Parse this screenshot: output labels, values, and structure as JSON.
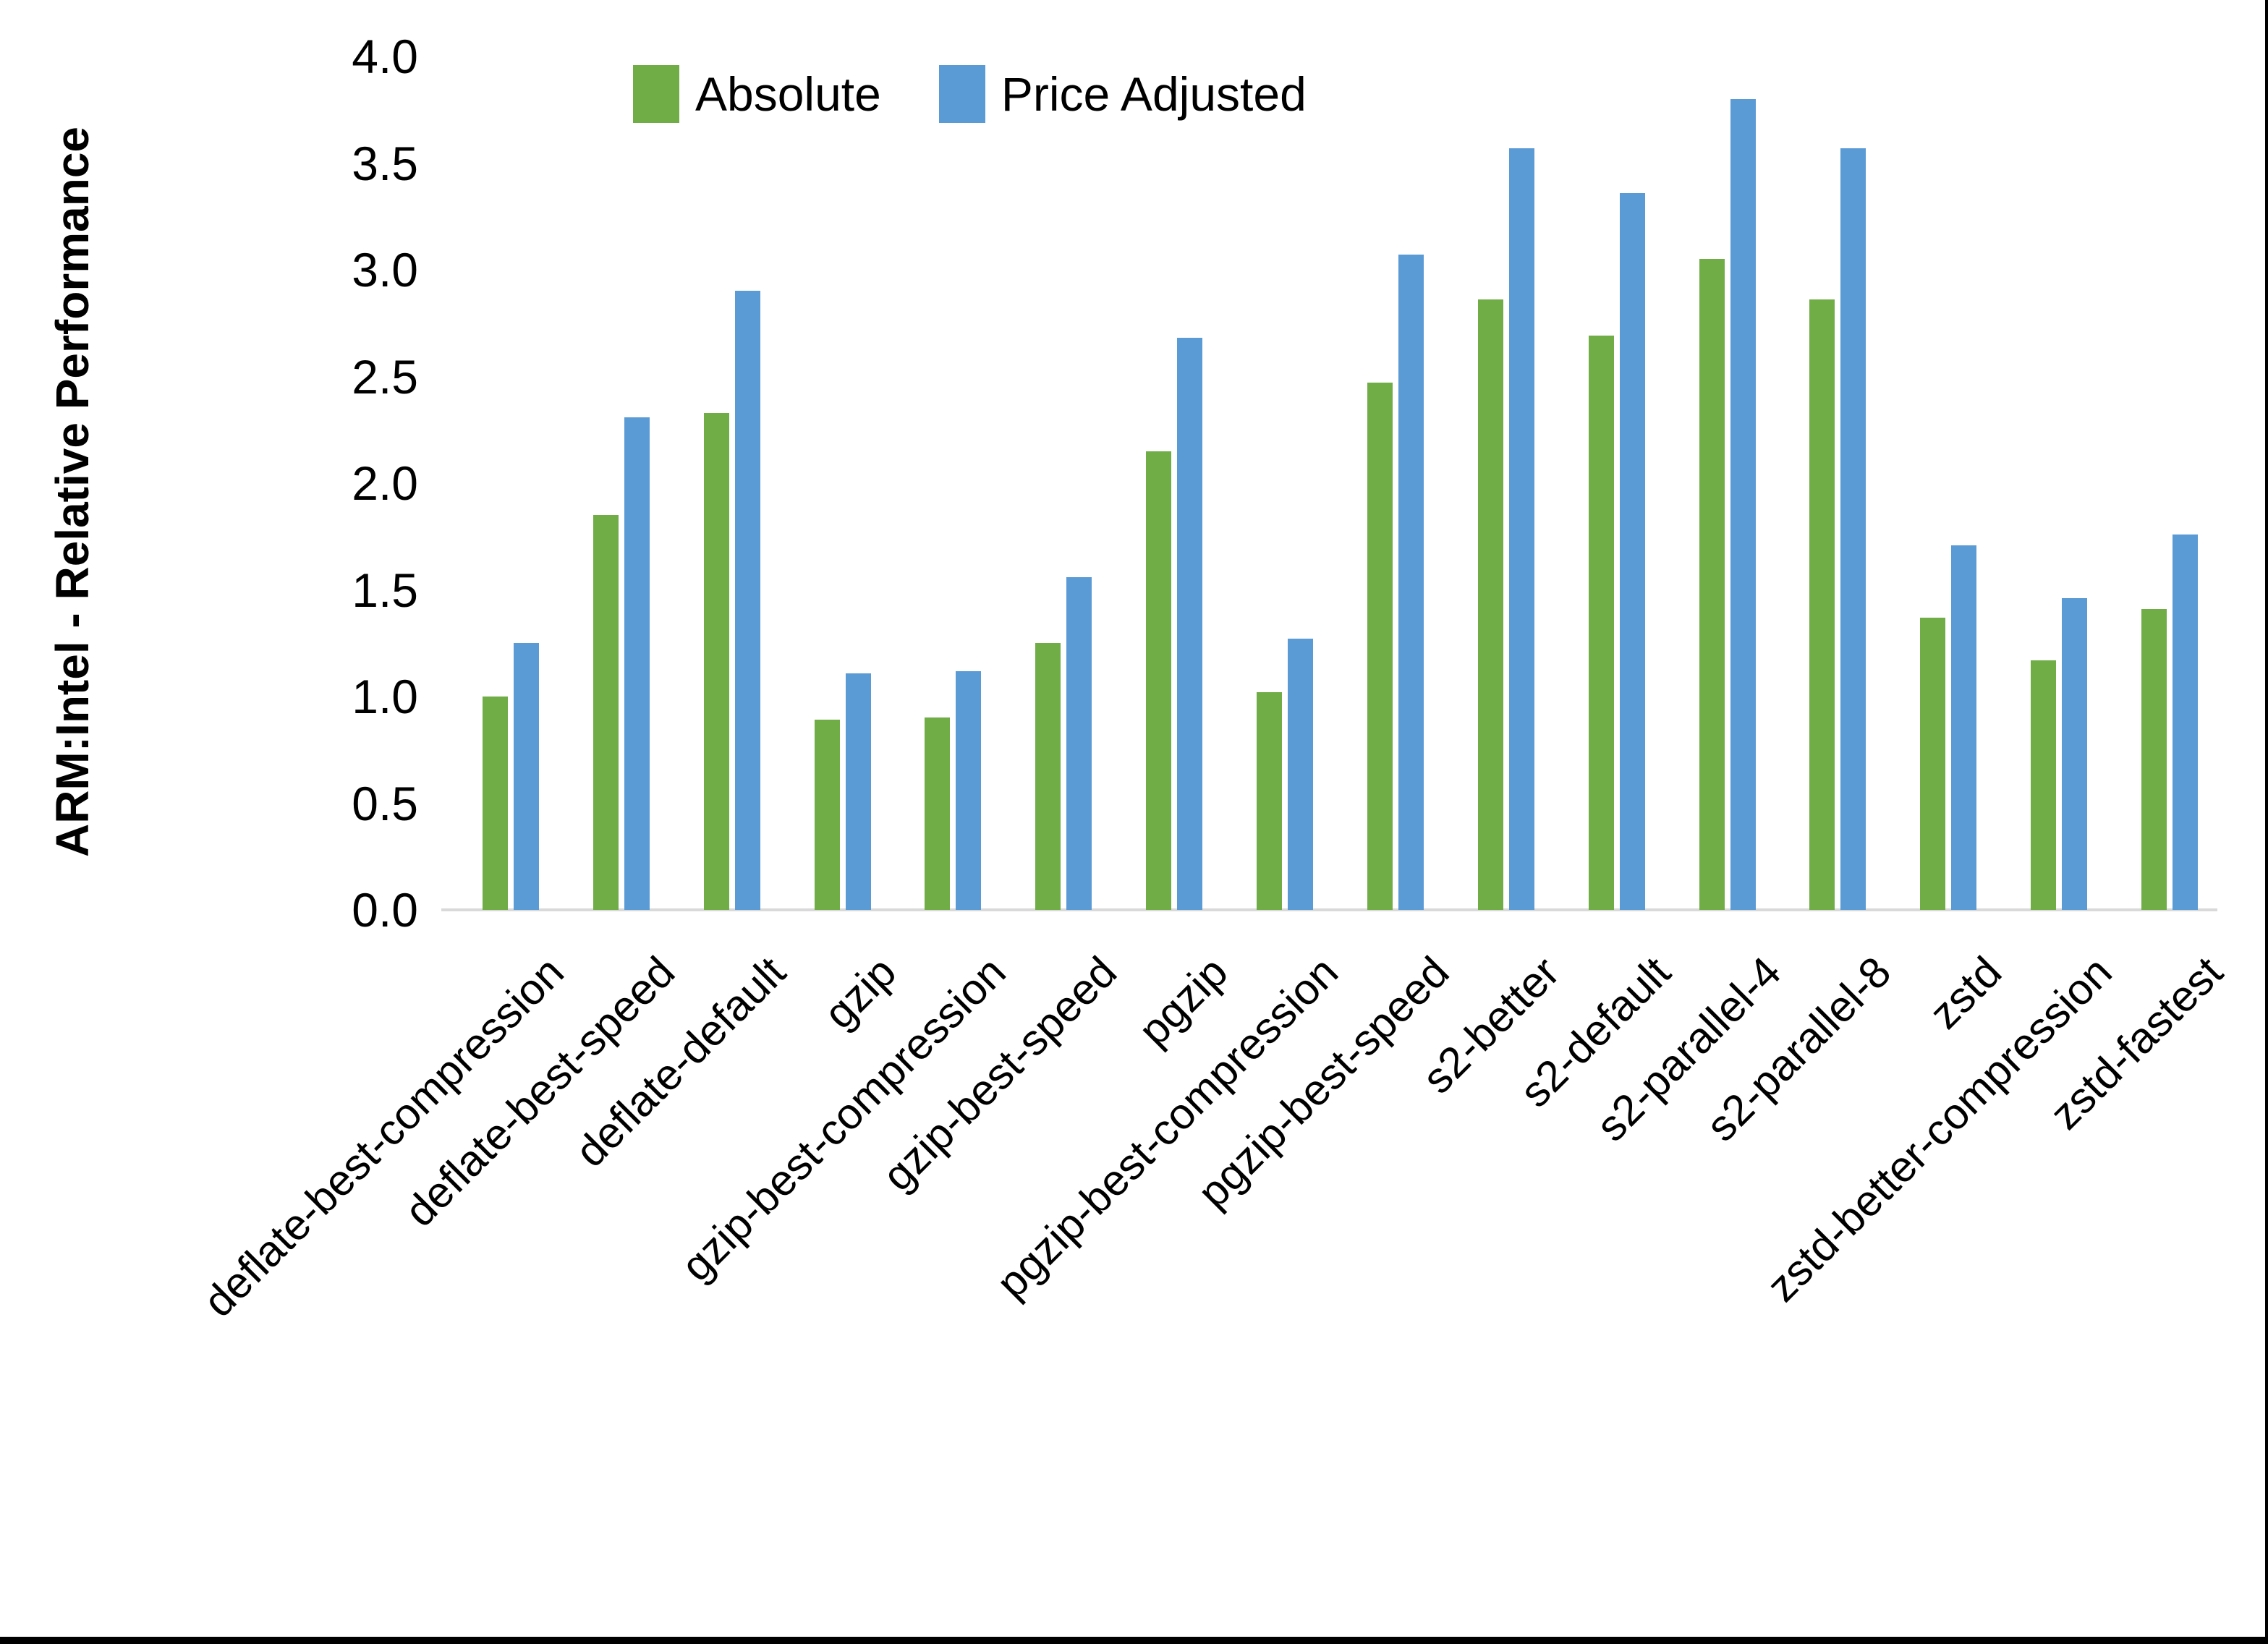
{
  "y_axis": {
    "title": "ARM:Intel - Relative Performance",
    "tick_labels": [
      "0.0",
      "0.5",
      "1.0",
      "1.5",
      "2.0",
      "2.5",
      "3.0",
      "3.5",
      "4.0"
    ],
    "min": 0.0,
    "max": 4.0,
    "step": 0.5
  },
  "legend": {
    "position": "top-center",
    "items": [
      {
        "label": "Absolute",
        "color": "#70AD47"
      },
      {
        "label": "Price Adjusted",
        "color": "#5B9BD5"
      }
    ]
  },
  "colors": {
    "absolute_green": "#70AD47",
    "price_adjusted_blue": "#5B9BD5",
    "axis_line_gray": "#d9d9d9",
    "text_black": "#000000"
  },
  "chart_data": {
    "type": "bar",
    "title": "",
    "xlabel": "",
    "ylabel": "ARM:Intel - Relative Performance",
    "ylim": [
      0.0,
      4.0
    ],
    "ytick_step": 0.5,
    "grid": false,
    "legend_position": "top-center",
    "categories": [
      "deflate-best-compression",
      "deflate-best-speed",
      "deflate-default",
      "gzip",
      "gzip-best-compression",
      "gzip-best-speed",
      "pgzip",
      "pgzip-best-compression",
      "pgzip-best-speed",
      "s2-better",
      "s2-default",
      "s2-parallel-4",
      "s2-parallel-8",
      "zstd",
      "zstd-better-compression",
      "zstd-fastest"
    ],
    "series": [
      {
        "name": "Absolute",
        "color": "#70AD47",
        "values": [
          1.0,
          1.85,
          2.33,
          0.89,
          0.9,
          1.25,
          2.15,
          1.02,
          2.47,
          2.86,
          2.69,
          3.05,
          2.86,
          1.37,
          1.17,
          1.41
        ]
      },
      {
        "name": "Price Adjusted",
        "color": "#5B9BD5",
        "values": [
          1.25,
          2.31,
          2.9,
          1.11,
          1.12,
          1.56,
          2.68,
          1.27,
          3.07,
          3.57,
          3.36,
          3.8,
          3.57,
          1.71,
          1.46,
          1.76
        ]
      }
    ]
  }
}
